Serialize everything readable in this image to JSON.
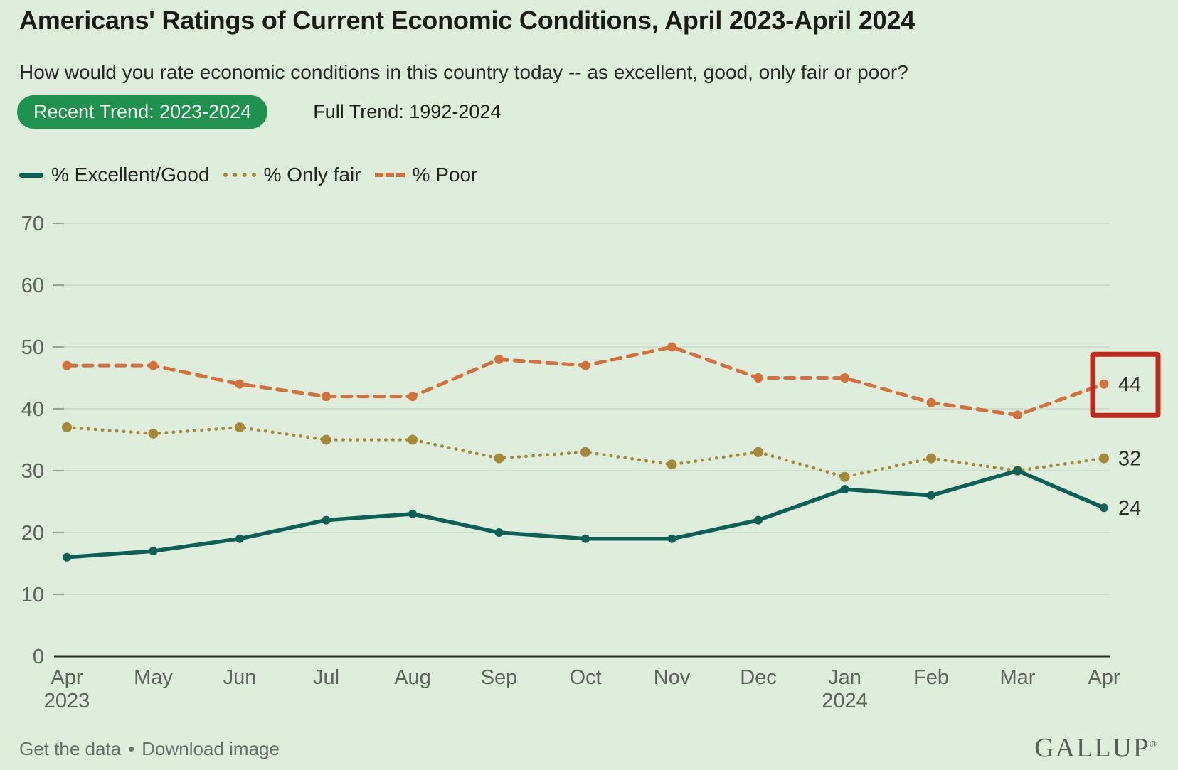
{
  "header": {
    "title": "Americans' Ratings of Current Economic Conditions, April 2023-April 2024",
    "question": "How would you rate economic conditions in this country today -- as excellent, good, only fair or poor?"
  },
  "tabs": [
    {
      "label": "Recent Trend: 2023-2024",
      "active": true
    },
    {
      "label": "Full Trend: 1992-2024",
      "active": false
    }
  ],
  "legend": [
    {
      "label": "% Excellent/Good",
      "style": "solid",
      "color": "#0e5f56"
    },
    {
      "label": "% Only fair",
      "style": "dotted",
      "color": "#a5893a"
    },
    {
      "label": "% Poor",
      "style": "dashed",
      "color": "#d2703e"
    }
  ],
  "chart_data": {
    "type": "line",
    "title": "Americans' Ratings of Current Economic Conditions, April 2023-April 2024",
    "categories": [
      "Apr 2023",
      "May",
      "Jun",
      "Jul",
      "Aug",
      "Sep",
      "Oct",
      "Nov",
      "Dec",
      "Jan 2024",
      "Feb",
      "Mar",
      "Apr"
    ],
    "series": [
      {
        "name": "% Excellent/Good",
        "color": "#0e5f56",
        "dash": "solid",
        "values": [
          16,
          17,
          19,
          22,
          23,
          20,
          19,
          19,
          22,
          27,
          26,
          30,
          24
        ],
        "end_label": "24"
      },
      {
        "name": "% Only fair",
        "color": "#a5893a",
        "dash": "dotted",
        "values": [
          37,
          36,
          37,
          35,
          35,
          32,
          33,
          31,
          33,
          29,
          32,
          30,
          32
        ],
        "end_label": "32"
      },
      {
        "name": "% Poor",
        "color": "#d2703e",
        "dash": "dashed",
        "values": [
          47,
          47,
          44,
          42,
          42,
          48,
          47,
          50,
          45,
          45,
          41,
          39,
          44
        ],
        "end_label": "44"
      }
    ],
    "xlabel": "",
    "ylabel": "",
    "ylim": [
      0,
      70
    ],
    "yticks": [
      0,
      10,
      20,
      30,
      40,
      50,
      60,
      70
    ],
    "grid": true,
    "legend_position": "top-left",
    "annotation": {
      "shape": "rect-outline",
      "series": "% Poor",
      "category": "Apr",
      "value": 44,
      "color": "#c2291b"
    }
  },
  "theme": {
    "background": "#dfeddc",
    "accent_green": "#21914f",
    "grid_color": "#cbd8c6",
    "tick_mark_color": "#97a396",
    "axis_color": "#26291f",
    "tick_label_color": "#5c655c",
    "end_label_color": "#2b2f2a",
    "annotation_red": "#c2291b"
  },
  "footer": {
    "get_data": "Get the data",
    "separator": "•",
    "download_image": "Download image",
    "logo": "GALLUP",
    "logo_mark": "®"
  }
}
